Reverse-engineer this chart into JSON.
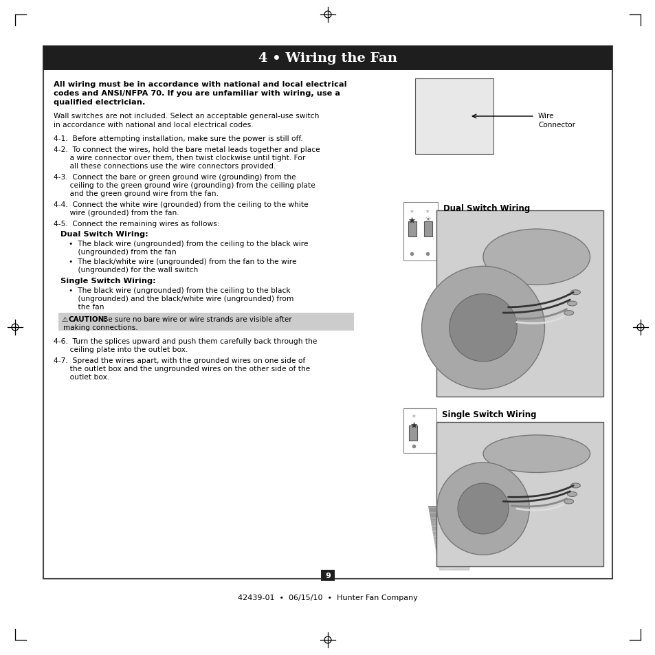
{
  "page_bg": "#ffffff",
  "border_color": "#444444",
  "header_bg": "#1e1e1e",
  "header_text": "4 • Wiring the Fan",
  "header_text_color": "#ffffff",
  "footer_text": "42439-01  •  06/15/10  •  Hunter Fan Company",
  "page_number": "9",
  "caution_bg": "#cccccc",
  "bold_intro_line1": "All wiring must be in accordance with national and local electrical",
  "bold_intro_line2": "codes and ANSI/NFPA 70. If you are unfamiliar with wiring, use a",
  "bold_intro_line3": "qualified electrician.",
  "para1_line1": "Wall switches are not included. Select an acceptable general-use switch",
  "para1_line2": "in accordance with national and local electrical codes.",
  "item41": "4-1.  Before attempting installation, make sure the power is still off.",
  "item42_l1": "4-2.  To connect the wires, hold the bare metal leads together and place",
  "item42_l2": "       a wire connector over them, then twist clockwise until tight. For",
  "item42_l3": "       all these connections use the wire connectors provided.",
  "item43_l1": "4-3.  Connect the bare or green ground wire (grounding) from the",
  "item43_l2": "       ceiling to the green ground wire (grounding) from the ceiling plate",
  "item43_l3": "       and the green ground wire from the fan.",
  "item44_l1": "4-4.  Connect the white wire (grounded) from the ceiling to the white",
  "item44_l2": "       wire (grounded) from the fan.",
  "item45": "4-5.  Connect the remaining wires as follows:",
  "dual_header": "Dual Switch Wiring:",
  "dual_b1_l1": "•  The black wire (ungrounded) from the ceiling to the black wire",
  "dual_b1_l2": "    (ungrounded) from the fan",
  "dual_b2_l1": "•  The black/white wire (ungrounded) from the fan to the wire",
  "dual_b2_l2": "    (ungrounded) for the wall switch",
  "single_header": "Single Switch Wiring:",
  "single_b1_l1": "•  The black wire (ungrounded) from the ceiling to the black",
  "single_b1_l2": "    (ungrounded) and the black/white wire (ungrounded) from",
  "single_b1_l3": "    the fan",
  "caution_sym": "⚠",
  "caution_bold": "CAUTION:",
  "caution_normal": " Be sure no bare wire or wire strands are visible after",
  "caution_line2": "making connections.",
  "item46_l1": "4-6.  Turn the splices upward and push them carefully back through the",
  "item46_l2": "       ceiling plate into the outlet box.",
  "item47_l1": "4-7.  Spread the wires apart, with the grounded wires on one side of",
  "item47_l2": "       the outlet box and the ungrounded wires on the other side of the",
  "item47_l3": "       outlet box.",
  "wire_connector_label_1": "Wire",
  "wire_connector_label_2": "Connector",
  "dual_switch_label": "Dual Switch Wiring",
  "single_switch_label": "Single Switch Wiring"
}
